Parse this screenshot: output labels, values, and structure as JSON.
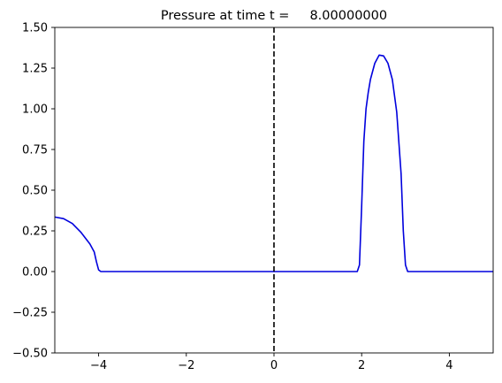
{
  "chart_data": {
    "type": "line",
    "title": "Pressure at time t =     8.00000000",
    "xlabel": "",
    "ylabel": "",
    "xlim": [
      -5,
      5
    ],
    "ylim": [
      -0.5,
      1.5
    ],
    "xticks": [
      -4,
      -2,
      0,
      2,
      4
    ],
    "yticks": [
      -0.5,
      -0.25,
      0.0,
      0.25,
      0.5,
      0.75,
      1.0,
      1.25,
      1.5
    ],
    "xtick_labels": [
      "−4",
      "−2",
      "0",
      "2",
      "4"
    ],
    "ytick_labels": [
      "−0.50",
      "−0.25",
      "0.00",
      "0.25",
      "0.50",
      "0.75",
      "1.00",
      "1.25",
      "1.50"
    ],
    "grid": false,
    "series": [
      {
        "color": "#0000dd",
        "x": [
          -5.0,
          -4.8,
          -4.6,
          -4.4,
          -4.2,
          -4.1,
          -4.05,
          -4.0,
          -3.95,
          -3.9,
          1.85,
          1.9,
          1.95,
          2.0,
          2.05,
          2.1,
          2.15,
          2.2,
          2.3,
          2.4,
          2.5,
          2.6,
          2.7,
          2.8,
          2.9,
          2.95,
          3.0,
          3.05,
          3.1,
          5.0
        ],
        "y": [
          0.335,
          0.325,
          0.295,
          0.24,
          0.17,
          0.12,
          0.06,
          0.01,
          0.0,
          0.0,
          0.0,
          0.0,
          0.04,
          0.4,
          0.8,
          1.0,
          1.1,
          1.18,
          1.28,
          1.33,
          1.325,
          1.28,
          1.18,
          0.98,
          0.6,
          0.25,
          0.04,
          0.0,
          0.0,
          0.0
        ]
      }
    ],
    "vlines": [
      {
        "x": 0,
        "style": "dashed",
        "color": "#000000"
      }
    ]
  }
}
